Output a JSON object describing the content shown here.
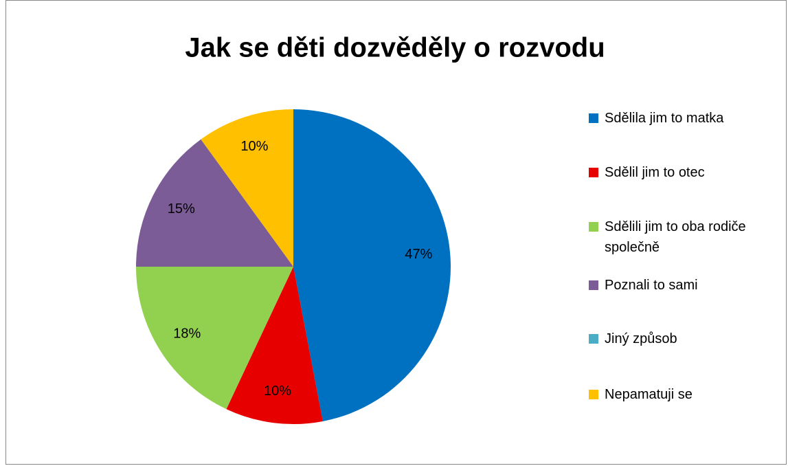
{
  "chart_data": {
    "type": "pie",
    "title": "Jak se děti dozvěděly o rozvodu",
    "categories": [
      "Sdělila jim to matka",
      "Sdělil jim to otec",
      "Sdělili jim to oba rodiče společně",
      "Poznali to sami",
      "Jiný způsob",
      "Nepamatuji se"
    ],
    "values": [
      47,
      10,
      18,
      15,
      0,
      10
    ],
    "value_labels": [
      "47%",
      "10%",
      "18%",
      "15%",
      null,
      "10%"
    ],
    "colors": [
      "#0070c0",
      "#e60000",
      "#92d050",
      "#7b5c96",
      "#4bacc6",
      "#ffc000"
    ],
    "legend": "right"
  }
}
